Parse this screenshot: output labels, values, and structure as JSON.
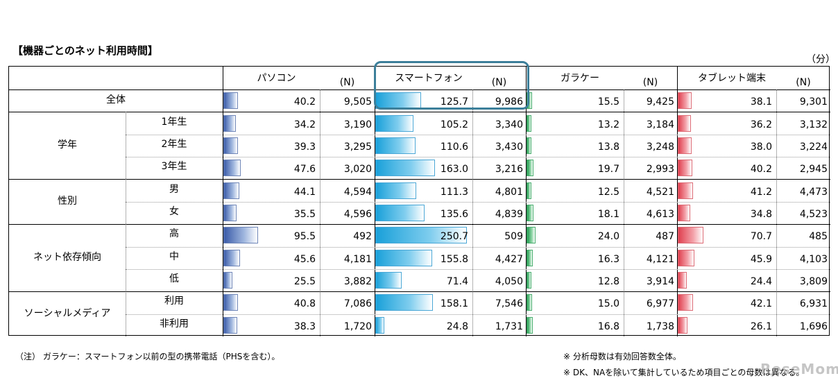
{
  "title": "【機器ごとのネット利用時間】",
  "unit": "（分）",
  "n_label": "(N)",
  "colors": {
    "pc": "#3a5ba8",
    "smartphone": "#19a0d9",
    "feature_phone": "#1f9a4d",
    "tablet": "#e0404f",
    "highlight": "#3c7f9a"
  },
  "chart_data": {
    "type": "bar",
    "devices": [
      "パソコン",
      "スマートフォン",
      "ガラケー",
      "タブレット端末"
    ],
    "rows": [
      {
        "group": "全体",
        "label": "",
        "values": [
          40.2,
          125.7,
          15.5,
          38.1
        ],
        "values_text": [
          "40.2",
          "125.7",
          "15.5",
          "38.1"
        ],
        "n": [
          "9,505",
          "9,986",
          "9,425",
          "9,301"
        ]
      },
      {
        "group": "学年",
        "label": "1年生",
        "values": [
          34.2,
          105.2,
          13.2,
          36.2
        ],
        "values_text": [
          "34.2",
          "105.2",
          "13.2",
          "36.2"
        ],
        "n": [
          "3,190",
          "3,340",
          "3,184",
          "3,132"
        ]
      },
      {
        "group": "",
        "label": "2年生",
        "values": [
          39.3,
          110.6,
          13.8,
          38.0
        ],
        "values_text": [
          "39.3",
          "110.6",
          "13.8",
          "38.0"
        ],
        "n": [
          "3,295",
          "3,430",
          "3,248",
          "3,224"
        ]
      },
      {
        "group": "",
        "label": "3年生",
        "values": [
          47.6,
          163.0,
          19.7,
          40.2
        ],
        "values_text": [
          "47.6",
          "163.0",
          "19.7",
          "40.2"
        ],
        "n": [
          "3,020",
          "3,216",
          "2,993",
          "2,945"
        ]
      },
      {
        "group": "性別",
        "label": "男",
        "values": [
          44.1,
          111.3,
          12.5,
          41.2
        ],
        "values_text": [
          "44.1",
          "111.3",
          "12.5",
          "41.2"
        ],
        "n": [
          "4,594",
          "4,801",
          "4,521",
          "4,473"
        ]
      },
      {
        "group": "",
        "label": "女",
        "values": [
          35.5,
          135.6,
          18.1,
          34.8
        ],
        "values_text": [
          "35.5",
          "135.6",
          "18.1",
          "34.8"
        ],
        "n": [
          "4,596",
          "4,839",
          "4,613",
          "4,523"
        ]
      },
      {
        "group": "ネット依存傾向",
        "label": "高",
        "values": [
          95.5,
          250.7,
          24.0,
          70.7
        ],
        "values_text": [
          "95.5",
          "250.7",
          "24.0",
          "70.7"
        ],
        "n": [
          "492",
          "509",
          "487",
          "485"
        ]
      },
      {
        "group": "",
        "label": "中",
        "values": [
          45.6,
          155.8,
          16.3,
          45.9
        ],
        "values_text": [
          "45.6",
          "155.8",
          "16.3",
          "45.9"
        ],
        "n": [
          "4,181",
          "4,427",
          "4,121",
          "4,103"
        ]
      },
      {
        "group": "",
        "label": "低",
        "values": [
          25.5,
          71.4,
          12.8,
          24.4
        ],
        "values_text": [
          "25.5",
          "71.4",
          "12.8",
          "24.4"
        ],
        "n": [
          "3,882",
          "4,050",
          "3,914",
          "3,809"
        ]
      },
      {
        "group": "ソーシャルメディア",
        "label": "利用",
        "values": [
          40.8,
          158.1,
          15.0,
          42.1
        ],
        "values_text": [
          "40.8",
          "158.1",
          "15.0",
          "42.1"
        ],
        "n": [
          "7,086",
          "7,546",
          "6,977",
          "6,931"
        ]
      },
      {
        "group": "",
        "label": "非利用",
        "values": [
          38.3,
          24.8,
          16.8,
          26.1
        ],
        "values_text": [
          "38.3",
          "24.8",
          "16.8",
          "26.1"
        ],
        "n": [
          "1,720",
          "1,731",
          "1,738",
          "1,696"
        ]
      }
    ],
    "highlighted_device": "スマートフォン"
  },
  "notes": {
    "left": "（注） ガラケー：スマートフォン以前の型の携帯電話（PHSを含む）。",
    "right1": "※  分析母数は有効回答数全体。",
    "right2": "※  DK、NAを除いて集計しているため項目ごとの母数は異なる。"
  },
  "watermark": "ReseMom"
}
